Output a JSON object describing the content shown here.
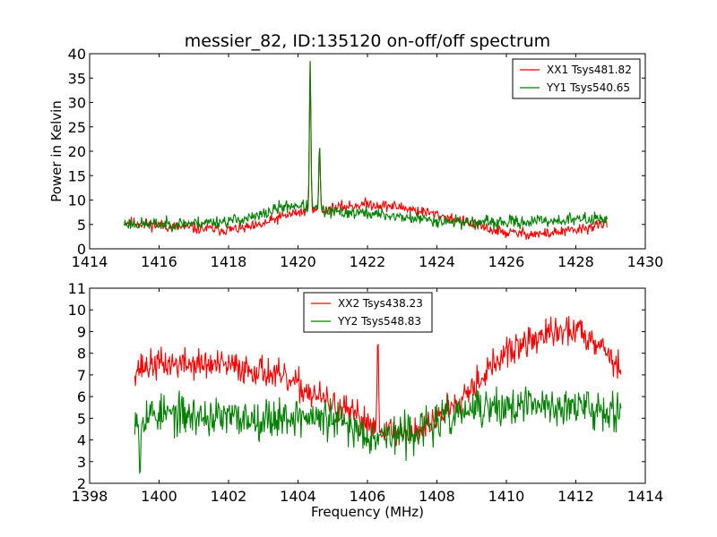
{
  "figure": {
    "title": "messier_82, ID:135120 on-off/off spectrum",
    "xlabel": "Frequency (MHz)",
    "ylabel": "Power in Kelvin"
  },
  "chart_data": [
    {
      "type": "line",
      "title": "messier_82, ID:135120 on-off/off spectrum",
      "xlabel": "",
      "ylabel": "Power in Kelvin",
      "xlim": [
        1414,
        1430
      ],
      "ylim": [
        0,
        40
      ],
      "xticks": [
        1414,
        1416,
        1418,
        1420,
        1422,
        1424,
        1426,
        1428,
        1430
      ],
      "yticks": [
        0,
        5,
        10,
        15,
        20,
        25,
        30,
        35,
        40
      ],
      "grid": false,
      "legend_position": "top-right",
      "x_range": [
        1415,
        1428.9
      ],
      "series": [
        {
          "name": "XX1 Tsys481.82",
          "color": "#ff0000",
          "noise": 0.9,
          "seed": 11,
          "x": [
            1415.0,
            1416.0,
            1417.0,
            1418.0,
            1418.8,
            1419.5,
            1420.0,
            1420.8,
            1421.5,
            1422.0,
            1423.0,
            1424.0,
            1424.8,
            1425.5,
            1426.0,
            1427.0,
            1428.0,
            1428.9
          ],
          "values": [
            5.5,
            4.8,
            4.2,
            3.9,
            4.5,
            6.5,
            7.5,
            8.0,
            8.8,
            9.2,
            8.5,
            7.0,
            5.5,
            4.0,
            3.3,
            3.0,
            3.8,
            5.2
          ],
          "peaks": [
            {
              "x": 1420.35,
              "height": 38.5,
              "width": 0.03
            },
            {
              "x": 1420.62,
              "height": 21.5,
              "width": 0.03
            }
          ]
        },
        {
          "name": "YY1 Tsys540.65",
          "color": "#008000",
          "noise": 1.0,
          "seed": 23,
          "x": [
            1415.0,
            1416.0,
            1417.0,
            1418.0,
            1418.8,
            1419.5,
            1420.0,
            1420.8,
            1421.5,
            1422.0,
            1423.0,
            1424.0,
            1424.8,
            1425.5,
            1426.0,
            1427.0,
            1428.0,
            1428.9
          ],
          "values": [
            5.2,
            5.0,
            5.3,
            5.7,
            6.5,
            8.5,
            9.0,
            7.5,
            7.4,
            7.3,
            6.5,
            5.8,
            5.5,
            5.3,
            5.4,
            5.7,
            6.0,
            6.3
          ],
          "peaks": [
            {
              "x": 1420.35,
              "height": 38.5,
              "width": 0.03
            },
            {
              "x": 1420.62,
              "height": 21.5,
              "width": 0.03
            }
          ]
        }
      ]
    },
    {
      "type": "line",
      "title": "",
      "xlabel": "Frequency (MHz)",
      "ylabel": "",
      "xlim": [
        1398,
        1414
      ],
      "ylim": [
        2,
        11
      ],
      "xticks": [
        1398,
        1400,
        1402,
        1404,
        1406,
        1408,
        1410,
        1412,
        1414
      ],
      "yticks": [
        2,
        3,
        4,
        5,
        6,
        7,
        8,
        9,
        10,
        11
      ],
      "grid": false,
      "legend_position": "top-center",
      "x_range": [
        1399.3,
        1413.3
      ],
      "series": [
        {
          "name": "XX2 Tsys438.23",
          "color": "#ff0000",
          "noise": 0.55,
          "seed": 37,
          "x": [
            1399.3,
            1400.0,
            1401.0,
            1402.0,
            1403.0,
            1404.0,
            1405.0,
            1406.0,
            1406.8,
            1407.5,
            1408.0,
            1409.0,
            1410.0,
            1411.0,
            1412.0,
            1412.7,
            1413.3
          ],
          "values": [
            7.3,
            7.5,
            7.5,
            7.4,
            7.2,
            6.5,
            5.6,
            4.8,
            4.3,
            4.4,
            5.0,
            6.5,
            8.0,
            8.8,
            9.1,
            8.5,
            7.2
          ],
          "peaks": [
            {
              "x": 1406.3,
              "height": 8.8,
              "width": 0.03
            }
          ]
        },
        {
          "name": "YY2 Tsys548.83",
          "color": "#008000",
          "noise": 0.7,
          "seed": 53,
          "x": [
            1399.3,
            1400.0,
            1401.0,
            1402.0,
            1403.0,
            1404.0,
            1405.0,
            1406.0,
            1407.0,
            1408.0,
            1409.0,
            1410.0,
            1411.0,
            1412.0,
            1413.3
          ],
          "values": [
            5.2,
            5.2,
            5.1,
            5.0,
            5.0,
            5.1,
            4.9,
            4.3,
            4.2,
            4.8,
            5.4,
            5.5,
            5.6,
            5.5,
            5.4
          ],
          "dips": [
            {
              "x": 1399.45,
              "depth": 2.2,
              "width": 0.03
            }
          ]
        }
      ]
    }
  ]
}
